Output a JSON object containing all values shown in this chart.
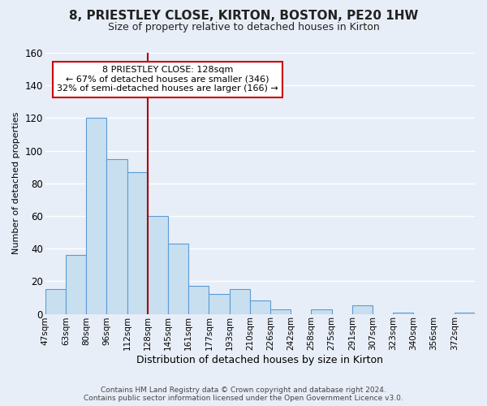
{
  "title": "8, PRIESTLEY CLOSE, KIRTON, BOSTON, PE20 1HW",
  "subtitle": "Size of property relative to detached houses in Kirton",
  "xlabel": "Distribution of detached houses by size in Kirton",
  "ylabel": "Number of detached properties",
  "bin_labels": [
    "47sqm",
    "63sqm",
    "80sqm",
    "96sqm",
    "112sqm",
    "128sqm",
    "145sqm",
    "161sqm",
    "177sqm",
    "193sqm",
    "210sqm",
    "226sqm",
    "242sqm",
    "258sqm",
    "275sqm",
    "291sqm",
    "307sqm",
    "323sqm",
    "340sqm",
    "356sqm",
    "372sqm"
  ],
  "bar_values": [
    15,
    36,
    120,
    95,
    87,
    60,
    43,
    17,
    12,
    15,
    8,
    3,
    0,
    3,
    0,
    5,
    0,
    1,
    0,
    0,
    1
  ],
  "bar_color": "#c8dff0",
  "bar_edge_color": "#5b9bd5",
  "vline_color": "#aa0000",
  "ylim": [
    0,
    160
  ],
  "yticks": [
    0,
    20,
    40,
    60,
    80,
    100,
    120,
    140,
    160
  ],
  "annotation_title": "8 PRIESTLEY CLOSE: 128sqm",
  "annotation_line1": "← 67% of detached houses are smaller (346)",
  "annotation_line2": "32% of semi-detached houses are larger (166) →",
  "annotation_box_color": "#ffffff",
  "annotation_border_color": "#cc0000",
  "footer_line1": "Contains HM Land Registry data © Crown copyright and database right 2024.",
  "footer_line2": "Contains public sector information licensed under the Open Government Licence v3.0.",
  "background_color": "#e8eef8",
  "grid_color": "#ffffff"
}
